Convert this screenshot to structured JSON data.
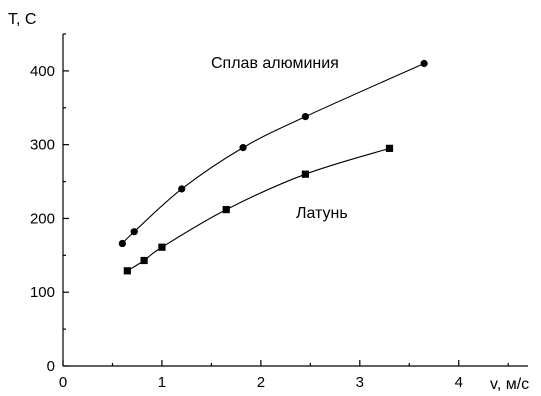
{
  "chart_data": {
    "type": "line",
    "ylabel": "T, C",
    "xlabel": "v, м/с",
    "xlim": [
      0,
      4.7
    ],
    "ylim": [
      0,
      450
    ],
    "xticks": [
      0,
      1,
      2,
      3,
      4
    ],
    "yticks": [
      0,
      100,
      200,
      300,
      400
    ],
    "grid": false,
    "series": [
      {
        "name": "Сплав алюминия",
        "marker": "circle",
        "x": [
          0.6,
          0.72,
          1.2,
          1.82,
          2.45,
          3.65
        ],
        "y": [
          166,
          182,
          240,
          296,
          338,
          410
        ]
      },
      {
        "name": "Латунь",
        "marker": "square",
        "x": [
          0.65,
          0.82,
          1.0,
          1.65,
          2.45,
          3.3
        ],
        "y": [
          129,
          143,
          161,
          212,
          260,
          295
        ]
      }
    ]
  }
}
